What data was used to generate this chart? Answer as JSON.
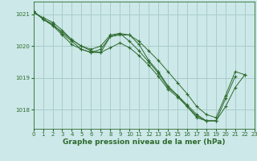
{
  "title": "Graphe pression niveau de la mer (hPa)",
  "bg_color": "#cce8e8",
  "grid_color": "#aacccc",
  "line_color": "#2d6a2d",
  "xlim": [
    0,
    23
  ],
  "ylim": [
    1017.4,
    1021.4
  ],
  "yticks": [
    1018,
    1019,
    1020,
    1021
  ],
  "xticks": [
    0,
    1,
    2,
    3,
    4,
    5,
    6,
    7,
    8,
    9,
    10,
    11,
    12,
    13,
    14,
    15,
    16,
    17,
    18,
    19,
    20,
    21,
    22,
    23
  ],
  "series": [
    [
      1021.1,
      1020.85,
      1020.65,
      1020.45,
      1020.2,
      1020.0,
      1019.85,
      1019.8,
      1019.95,
      1020.1,
      1019.95,
      1019.7,
      1019.4,
      1019.05,
      1018.65,
      1018.4,
      1018.1,
      1017.8,
      1017.65,
      1017.65,
      null,
      null,
      null,
      null
    ],
    [
      1021.1,
      1020.85,
      1020.65,
      1020.35,
      1020.05,
      1019.9,
      1019.8,
      1019.9,
      1020.3,
      1020.35,
      1020.35,
      1020.05,
      1019.55,
      1019.2,
      1018.75,
      1018.45,
      1018.15,
      1017.85,
      1017.65,
      1017.65,
      1018.35,
      1019.05,
      null,
      null
    ],
    [
      1021.1,
      1020.85,
      1020.7,
      1020.4,
      1020.15,
      1019.9,
      1019.8,
      1019.8,
      1020.3,
      1020.4,
      1020.15,
      1019.85,
      1019.5,
      1019.15,
      1018.7,
      1018.45,
      1018.1,
      1017.75,
      1017.65,
      1017.65,
      1018.1,
      1018.7,
      1019.1,
      null
    ],
    [
      1021.05,
      1020.9,
      1020.75,
      1020.5,
      1020.2,
      1020.0,
      1019.9,
      1020.0,
      1020.35,
      1020.4,
      1020.35,
      1020.15,
      1019.85,
      1019.55,
      1019.2,
      1018.85,
      1018.5,
      1018.1,
      1017.85,
      1017.75,
      1018.45,
      1019.2,
      1019.1,
      null
    ]
  ]
}
